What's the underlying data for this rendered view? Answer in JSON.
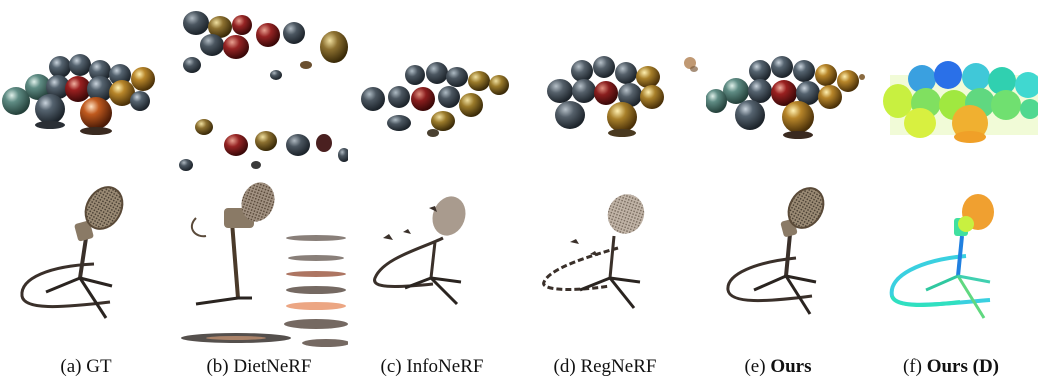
{
  "figure": {
    "rows": [
      "materials-scene",
      "microphone-scene"
    ],
    "columns": [
      {
        "prefix": "(a) ",
        "label": "GT",
        "bold": false
      },
      {
        "prefix": "(b) ",
        "label": "DietNeRF",
        "bold": false
      },
      {
        "prefix": "(c) ",
        "label": "InfoNeRF",
        "bold": false
      },
      {
        "prefix": "(d) ",
        "label": "RegNeRF",
        "bold": false
      },
      {
        "prefix": "(e) ",
        "label": "Ours",
        "bold": true
      },
      {
        "prefix": "(f) ",
        "label": "Ours (D)",
        "bold": true
      }
    ]
  },
  "colors": {
    "background": "#ffffff",
    "sphere_dark": "#3b4752",
    "sphere_red": "#8a1e1e",
    "sphere_gold": "#b5862a",
    "sphere_teal": "#5f8c84",
    "mic_metal": "#8a7a66",
    "stand": "#3a302a",
    "depth_map": "viridis-like"
  }
}
